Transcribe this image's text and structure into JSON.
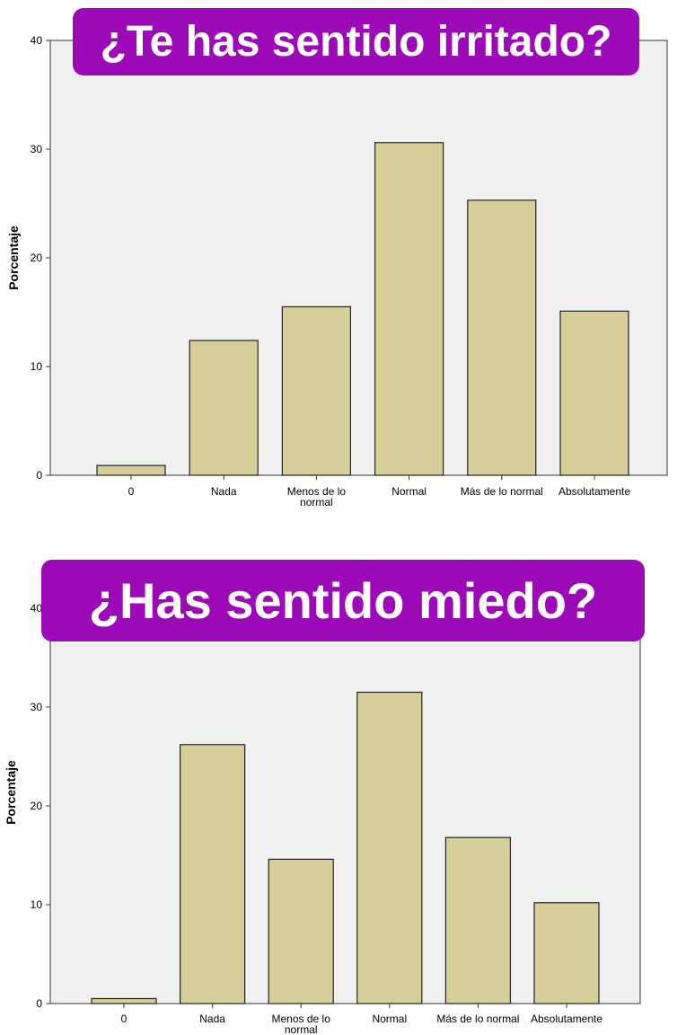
{
  "colors": {
    "banner_bg": "#9c09b7",
    "banner_text": "#ffffff",
    "plot_bg": "#f0f0f0",
    "bar_fill": "#d6cf9a",
    "bar_stroke": "#222222"
  },
  "chart_data": [
    {
      "type": "bar",
      "title": "¿Te has sentido irritado?",
      "xlabel": "",
      "ylabel": "Porcentaje",
      "ylim": [
        0,
        40
      ],
      "yticks": [
        "0",
        "10",
        "20",
        "30",
        "40"
      ],
      "categories": [
        [
          "0"
        ],
        [
          "Nada"
        ],
        [
          "Menos de lo",
          "normal"
        ],
        [
          "Normal"
        ],
        [
          "Más de lo normal"
        ],
        [
          "Absolutamente"
        ]
      ],
      "values": [
        0.9,
        12.4,
        15.5,
        30.6,
        25.3,
        15.1
      ]
    },
    {
      "type": "bar",
      "title": "¿Has sentido miedo?",
      "xlabel": "",
      "ylabel": "Porcentaje",
      "ylim": [
        0,
        40
      ],
      "yticks": [
        "0",
        "10",
        "20",
        "30",
        "40"
      ],
      "categories": [
        [
          "0"
        ],
        [
          "Nada"
        ],
        [
          "Menos de lo",
          "normal"
        ],
        [
          "Normal"
        ],
        [
          "Más de lo normal"
        ],
        [
          "Absolutamente"
        ]
      ],
      "values": [
        0.5,
        26.2,
        14.6,
        31.5,
        16.8,
        10.2
      ]
    }
  ]
}
